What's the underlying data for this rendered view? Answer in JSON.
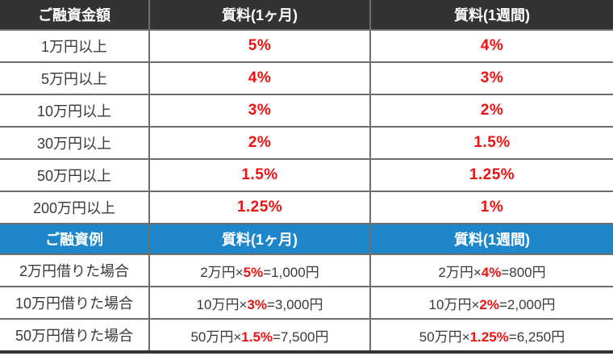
{
  "colors": {
    "header_dark_bg": "#333333",
    "header_blue_bg": "#1e87cb",
    "header_text": "#ffffff",
    "body_text": "#3a3a3a",
    "rate_red": "#ee1111",
    "grid_border": "#6e6e6e",
    "bottom_border": "#333333"
  },
  "rate_table": {
    "headers": [
      "ご融資金額",
      "質料(1ヶ月)",
      "質料(1週間)"
    ],
    "rows": [
      {
        "amount": "1万円以上",
        "monthly": "5%",
        "weekly": "4%"
      },
      {
        "amount": "5万円以上",
        "monthly": "4%",
        "weekly": "3%"
      },
      {
        "amount": "10万円以上",
        "monthly": "3%",
        "weekly": "2%"
      },
      {
        "amount": "30万円以上",
        "monthly": "2%",
        "weekly": "1.5%"
      },
      {
        "amount": "50万円以上",
        "monthly": "1.5%",
        "weekly": "1.25%"
      },
      {
        "amount": "200万円以上",
        "monthly": "1.25%",
        "weekly": "1%"
      }
    ]
  },
  "example_table": {
    "headers": [
      "ご融資例",
      "質料(1ヶ月)",
      "質料(1週間)"
    ],
    "rows": [
      {
        "case": "2万円借りた場合",
        "monthly": {
          "prefix": "2万円×",
          "rate": "5%",
          "suffix": "=1,000円"
        },
        "weekly": {
          "prefix": "2万円×",
          "rate": "4%",
          "suffix": "=800円"
        }
      },
      {
        "case": "10万円借りた場合",
        "monthly": {
          "prefix": "10万円×",
          "rate": "3%",
          "suffix": "=3,000円"
        },
        "weekly": {
          "prefix": "10万円×",
          "rate": "2%",
          "suffix": "=2,000円"
        }
      },
      {
        "case": "50万円借りた場合",
        "monthly": {
          "prefix": "50万円×",
          "rate": "1.5%",
          "suffix": "=7,500円"
        },
        "weekly": {
          "prefix": "50万円×",
          "rate": "1.25%",
          "suffix": "=6,250円"
        }
      }
    ]
  }
}
